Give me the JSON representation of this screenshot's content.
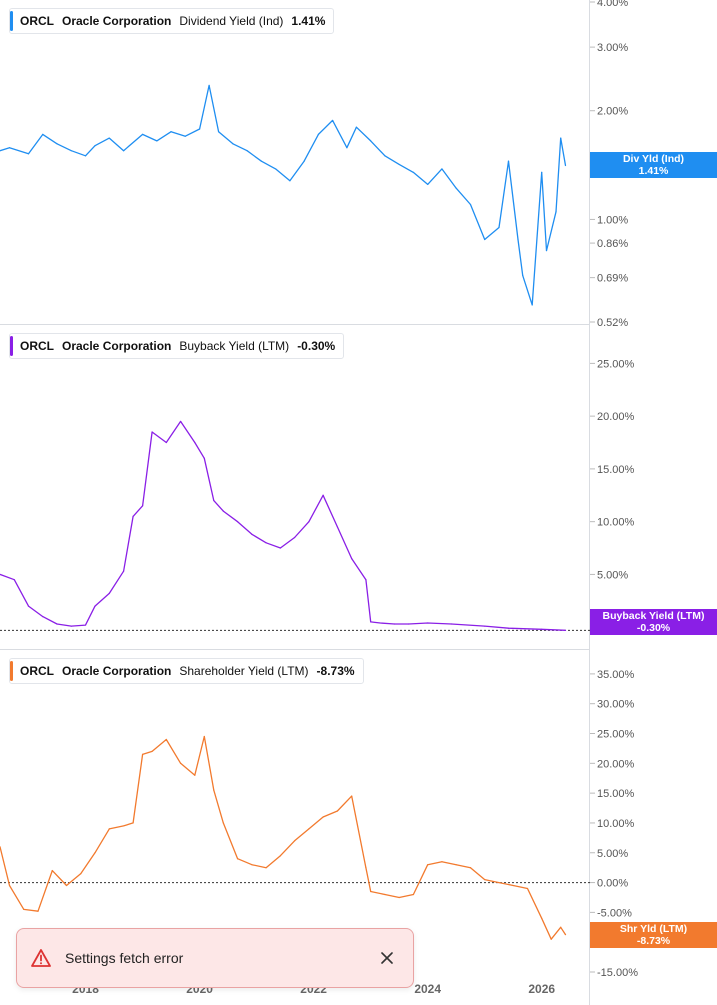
{
  "colors": {
    "dividend": "#1f8ef1",
    "buyback": "#8a1fe6",
    "shareholder": "#f27a2e",
    "grid": "#e6e8eb"
  },
  "chart_data": [
    {
      "type": "line",
      "ticker": "ORCL",
      "company": "Oracle Corporation",
      "metric": "Dividend Yield (Ind)",
      "current": "1.41%",
      "tag_label": "Div Yld (Ind)",
      "tag_value": "1.41%",
      "scale": "log",
      "ylim": [
        0.52,
        4.0
      ],
      "y_ticks": [
        "4.00%",
        "3.00%",
        "2.00%",
        "1.00%",
        "0.86%",
        "0.69%",
        "0.52%"
      ],
      "y_tick_values": [
        4.0,
        3.0,
        2.0,
        1.0,
        0.86,
        0.69,
        0.52
      ],
      "x": [
        "2016-07",
        "2016-09",
        "2017-01",
        "2017-04",
        "2017-07",
        "2017-10",
        "2018-01",
        "2018-03",
        "2018-06",
        "2018-09",
        "2019-01",
        "2019-04",
        "2019-07",
        "2019-10",
        "2020-01",
        "2020-03",
        "2020-05",
        "2020-08",
        "2020-11",
        "2021-02",
        "2021-05",
        "2021-08",
        "2021-11",
        "2022-02",
        "2022-05",
        "2022-08",
        "2022-10",
        "2023-01",
        "2023-04",
        "2023-07",
        "2023-10",
        "2024-01",
        "2024-04",
        "2024-07",
        "2024-10",
        "2025-01",
        "2025-04",
        "2025-06",
        "2025-08",
        "2025-09",
        "2025-11",
        "2026-01",
        "2026-02",
        "2026-04",
        "2026-05",
        "2026-06"
      ],
      "values": [
        1.55,
        1.58,
        1.52,
        1.72,
        1.62,
        1.55,
        1.5,
        1.6,
        1.68,
        1.55,
        1.72,
        1.65,
        1.75,
        1.7,
        1.78,
        2.35,
        1.75,
        1.62,
        1.55,
        1.45,
        1.38,
        1.28,
        1.45,
        1.72,
        1.88,
        1.58,
        1.8,
        1.65,
        1.5,
        1.42,
        1.35,
        1.25,
        1.38,
        1.22,
        1.1,
        0.88,
        0.95,
        1.45,
        0.88,
        0.7,
        0.58,
        1.35,
        0.82,
        1.05,
        1.68,
        1.41
      ]
    },
    {
      "type": "line",
      "ticker": "ORCL",
      "company": "Oracle Corporation",
      "metric": "Buyback Yield (LTM)",
      "current": "-0.30%",
      "tag_label": "Buyback Yield (LTM)",
      "tag_value": "-0.30%",
      "ylim": [
        -1.5,
        27.5
      ],
      "y_ticks": [
        "25.00%",
        "20.00%",
        "15.00%",
        "10.00%",
        "5.00%"
      ],
      "y_tick_values": [
        25,
        20,
        15,
        10,
        5
      ],
      "zero_line": -0.3,
      "x": [
        "2016-07",
        "2016-10",
        "2017-01",
        "2017-04",
        "2017-07",
        "2017-10",
        "2018-01",
        "2018-03",
        "2018-06",
        "2018-09",
        "2018-11",
        "2019-01",
        "2019-03",
        "2019-06",
        "2019-09",
        "2019-12",
        "2020-02",
        "2020-04",
        "2020-06",
        "2020-09",
        "2020-12",
        "2021-03",
        "2021-06",
        "2021-09",
        "2021-12",
        "2022-03",
        "2022-06",
        "2022-09",
        "2022-12",
        "2023-01",
        "2023-03",
        "2023-06",
        "2023-09",
        "2024-01",
        "2024-06",
        "2025-01",
        "2025-06",
        "2026-01",
        "2026-06"
      ],
      "values": [
        5.0,
        4.5,
        2.0,
        1.0,
        0.3,
        0.1,
        0.2,
        2.0,
        3.2,
        5.3,
        10.5,
        11.5,
        18.5,
        17.5,
        19.5,
        17.5,
        16.0,
        12.0,
        11.0,
        10.0,
        8.8,
        8.0,
        7.5,
        8.5,
        10.0,
        12.5,
        9.5,
        6.5,
        4.5,
        0.5,
        0.4,
        0.3,
        0.3,
        0.4,
        0.3,
        0.1,
        -0.1,
        -0.2,
        -0.3
      ]
    },
    {
      "type": "line",
      "ticker": "ORCL",
      "company": "Oracle Corporation",
      "metric": "Shareholder Yield (LTM)",
      "current": "-8.73%",
      "tag_label": "Shr Yld (LTM)",
      "tag_value": "-8.73%",
      "ylim": [
        -15,
        38
      ],
      "y_ticks": [
        "35.00%",
        "30.00%",
        "25.00%",
        "20.00%",
        "15.00%",
        "10.00%",
        "5.00%",
        "0.00%",
        "-5.00%",
        "-10.00%",
        "-15.00%"
      ],
      "y_tick_values": [
        35,
        30,
        25,
        20,
        15,
        10,
        5,
        0,
        -5,
        -10,
        -15
      ],
      "zero_line": 0,
      "x": [
        "2016-07",
        "2016-09",
        "2016-12",
        "2017-03",
        "2017-06",
        "2017-09",
        "2017-12",
        "2018-03",
        "2018-06",
        "2018-09",
        "2018-11",
        "2019-01",
        "2019-03",
        "2019-06",
        "2019-09",
        "2019-12",
        "2020-02",
        "2020-04",
        "2020-06",
        "2020-09",
        "2020-12",
        "2021-03",
        "2021-06",
        "2021-09",
        "2021-12",
        "2022-03",
        "2022-06",
        "2022-09",
        "2022-12",
        "2023-01",
        "2023-04",
        "2023-07",
        "2023-10",
        "2024-01",
        "2024-04",
        "2024-07",
        "2024-10",
        "2025-01",
        "2025-04",
        "2025-07",
        "2025-10",
        "2026-01",
        "2026-03",
        "2026-05",
        "2026-06"
      ],
      "values": [
        6.0,
        -0.5,
        -4.5,
        -4.8,
        2.0,
        -0.5,
        1.5,
        5.0,
        9.0,
        9.5,
        10.0,
        21.5,
        22.0,
        24.0,
        20.0,
        18.0,
        24.5,
        15.5,
        10.0,
        4.0,
        3.0,
        2.5,
        4.5,
        7.0,
        9.0,
        11.0,
        12.0,
        14.5,
        2.5,
        -1.5,
        -2.0,
        -2.5,
        -2.0,
        3.0,
        3.5,
        3.0,
        2.5,
        0.5,
        0.0,
        -0.5,
        -1.0,
        -6.0,
        -9.5,
        -7.5,
        -8.73
      ]
    }
  ],
  "x_axis": {
    "ticks": [
      "2018",
      "2020",
      "2022",
      "2024",
      "2026"
    ],
    "tick_dates": [
      "2018-01",
      "2020-01",
      "2022-01",
      "2024-01",
      "2026-01"
    ],
    "range": [
      "2016-07",
      "2026-08"
    ]
  },
  "toast": {
    "message": "Settings fetch error",
    "close_icon": "close-icon",
    "warning_icon": "warning-triangle-icon"
  }
}
